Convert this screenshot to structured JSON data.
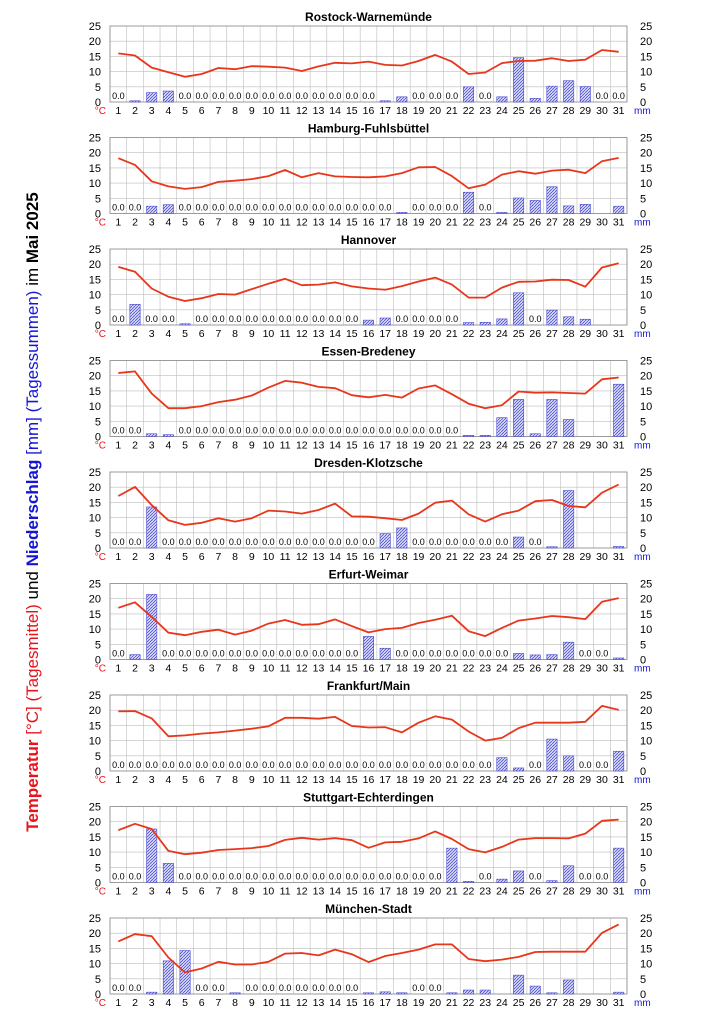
{
  "colors": {
    "temp": "#e8361b",
    "precip": "#4a4ad0",
    "precip_fill": "#c5c8f2",
    "grid": "#bdbdbd",
    "axis": "#000000",
    "unit_red": "#e8141b",
    "unit_blue": "#1515d6"
  },
  "y_title": {
    "temp_word": "Temperatur",
    "temp_unit": "[°C] (Tagesmittel)",
    "und": " und ",
    "precip_word": "Niederschlag",
    "precip_unit": "[mm] (Tagessummen)",
    "im": " im ",
    "month": "Mai 2025"
  },
  "chart_data": [
    {
      "type": "line+bar",
      "title": "Rostock-Warnemünde",
      "x": [
        1,
        2,
        3,
        4,
        5,
        6,
        7,
        8,
        9,
        10,
        11,
        12,
        13,
        14,
        15,
        16,
        17,
        18,
        19,
        20,
        21,
        22,
        23,
        24,
        25,
        26,
        27,
        28,
        29,
        30,
        31
      ],
      "ylim": [
        0,
        25
      ],
      "ylabel_left": "°C",
      "ylabel_right": "mm",
      "temperature": [
        16,
        15.3,
        11.3,
        9.8,
        8.3,
        9.2,
        11.2,
        10.8,
        11.8,
        11.6,
        11.3,
        10.2,
        11.7,
        12.9,
        12.7,
        13.3,
        12.2,
        12,
        13.5,
        15.5,
        13.3,
        9.2,
        9.7,
        12.8,
        13.5,
        13.6,
        14.4,
        13.5,
        13.9,
        17.1,
        16.5
      ],
      "precipitation": [
        0,
        0.3,
        3.1,
        3.6,
        0,
        0,
        0,
        0,
        0,
        0,
        0,
        0,
        0,
        0,
        0,
        0,
        0.1,
        1.7,
        0,
        0,
        0,
        5,
        0,
        1.7,
        14.6,
        1.2,
        5.2,
        7,
        5.1,
        0,
        0
      ],
      "zero_labels": [
        "0.0",
        "0.0",
        "0.0",
        "0.0",
        "0.0",
        "0.0",
        "0.0",
        "0.0",
        "0.0",
        "0.0",
        "0.0",
        "0.0",
        "0.0",
        "0.0",
        "0.0",
        "0.0",
        "0.0",
        "0.0",
        "0.0",
        "0.0"
      ]
    },
    {
      "type": "line+bar",
      "title": "Hamburg-Fuhlsbüttel",
      "x": [
        1,
        2,
        3,
        4,
        5,
        6,
        7,
        8,
        9,
        10,
        11,
        12,
        13,
        14,
        15,
        16,
        17,
        18,
        19,
        20,
        21,
        22,
        23,
        24,
        25,
        26,
        27,
        28,
        29,
        30,
        31
      ],
      "ylim": [
        0,
        25
      ],
      "ylabel_left": "°C",
      "ylabel_right": "mm",
      "temperature": [
        18.2,
        16,
        10.6,
        8.9,
        8.1,
        8.7,
        10.4,
        10.8,
        11.3,
        12.3,
        14.3,
        11.9,
        13.3,
        12.2,
        12,
        11.9,
        12.2,
        13.3,
        15.2,
        15.3,
        12.3,
        8.3,
        9.5,
        12.8,
        13.9,
        13.1,
        14.1,
        14.4,
        13.3,
        17.2,
        18.3
      ],
      "precipitation": [
        0,
        0,
        2.4,
        2.9,
        0,
        0,
        0,
        0,
        0,
        0,
        0,
        0,
        0,
        0,
        0,
        0,
        0,
        0.1,
        0,
        0,
        0,
        7,
        0,
        0.3,
        5.1,
        4.3,
        8.8,
        2.5,
        3,
        0,
        2.4
      ],
      "zero_labels": [
        "0.0",
        "0.0",
        "0.0",
        "0.0",
        "0.0",
        "0.0",
        "0.0",
        "0.0",
        "0.0",
        "0.0",
        "0.0",
        "0.0",
        "0.0",
        "0.0",
        "0.0",
        "0.0",
        "0.0",
        "0.0",
        "0.0"
      ]
    },
    {
      "type": "line+bar",
      "title": "Hannover",
      "x": [
        1,
        2,
        3,
        4,
        5,
        6,
        7,
        8,
        9,
        10,
        11,
        12,
        13,
        14,
        15,
        16,
        17,
        18,
        19,
        20,
        21,
        22,
        23,
        24,
        25,
        26,
        27,
        28,
        29,
        30,
        31
      ],
      "ylim": [
        0,
        25
      ],
      "ylabel_left": "°C",
      "ylabel_right": "mm",
      "temperature": [
        19.1,
        17.5,
        12,
        9.3,
        7.9,
        8.8,
        10.2,
        10,
        11.8,
        13.6,
        15.2,
        13.1,
        13.3,
        14,
        12.7,
        12,
        11.6,
        12.8,
        14.3,
        15.6,
        13.3,
        9,
        9,
        12.3,
        14.2,
        14.3,
        14.9,
        14.8,
        12.6,
        18.9,
        20.3
      ],
      "precipitation": [
        0,
        6.8,
        0,
        0,
        0.2,
        0,
        0,
        0,
        0,
        0,
        0,
        0,
        0,
        0,
        0,
        1.6,
        2.3,
        0,
        0,
        0,
        0,
        0.8,
        0.9,
        2,
        10.6,
        0,
        4.9,
        2.7,
        1.9,
        0,
        0
      ],
      "zero_labels": [
        "0.0",
        "0.0",
        "0.0",
        "0.0",
        "0.0",
        "0.0",
        "0.0",
        "0.0",
        "0.0",
        "0.0",
        "0.0",
        "0.0",
        "0.0",
        "0.0",
        "0.0",
        "0.0",
        "0.0",
        "0.0"
      ]
    },
    {
      "type": "line+bar",
      "title": "Essen-Bredeney",
      "x": [
        1,
        2,
        3,
        4,
        5,
        6,
        7,
        8,
        9,
        10,
        11,
        12,
        13,
        14,
        15,
        16,
        17,
        18,
        19,
        20,
        21,
        22,
        23,
        24,
        25,
        26,
        27,
        28,
        29,
        30,
        31
      ],
      "ylim": [
        0,
        25
      ],
      "ylabel_left": "°C",
      "ylabel_right": "mm",
      "temperature": [
        20.9,
        21.4,
        14.1,
        9.3,
        9.3,
        10,
        11.3,
        12.1,
        13.5,
        16.1,
        18.3,
        17.7,
        16.3,
        15.9,
        13.6,
        12.9,
        13.7,
        12.8,
        15.8,
        16.8,
        13.9,
        10.8,
        9.3,
        10.3,
        14.8,
        14.4,
        14.5,
        14.3,
        14.1,
        18.8,
        19.4
      ],
      "precipitation": [
        0,
        0,
        0.9,
        0.6,
        0,
        0,
        0,
        0,
        0,
        0,
        0,
        0,
        0,
        0,
        0,
        0,
        0,
        0,
        0,
        0,
        0,
        0.2,
        0.3,
        6.2,
        12.2,
        0.9,
        12.2,
        5.6,
        0,
        0,
        17.2
      ],
      "zero_labels": [
        "0.0",
        "0.0",
        "0.0",
        "0.0",
        "0.0",
        "0.0",
        "0.0",
        "0.0",
        "0.0",
        "0.0",
        "0.0",
        "0.0",
        "0.0",
        "0.0",
        "0.0",
        "0.0",
        "0.0",
        "0.0",
        "0.0"
      ]
    },
    {
      "type": "line+bar",
      "title": "Dresden-Klotzsche",
      "x": [
        1,
        2,
        3,
        4,
        5,
        6,
        7,
        8,
        9,
        10,
        11,
        12,
        13,
        14,
        15,
        16,
        17,
        18,
        19,
        20,
        21,
        22,
        23,
        24,
        25,
        26,
        27,
        28,
        29,
        30,
        31
      ],
      "ylim": [
        0,
        25
      ],
      "ylabel_left": "°C",
      "ylabel_right": "mm",
      "temperature": [
        17.1,
        20.1,
        14.1,
        9.1,
        7.6,
        8.3,
        9.8,
        8.7,
        9.8,
        12.3,
        12,
        11.3,
        12.5,
        14.6,
        10.4,
        10.3,
        9.8,
        9.2,
        11.3,
        14.9,
        15.6,
        11.1,
        8.7,
        11.1,
        12.3,
        15.4,
        15.8,
        13.8,
        13.4,
        18.2,
        20.9
      ],
      "precipitation": [
        0,
        0,
        13.5,
        0,
        0,
        0,
        0,
        0,
        0,
        0,
        0,
        0,
        0,
        0,
        0,
        0,
        4.7,
        6.6,
        0,
        0,
        0,
        0,
        0,
        0,
        3.6,
        0,
        0.4,
        18.9,
        0,
        0,
        0.5
      ],
      "zero_labels": [
        "0.0",
        "0.0",
        "0.0",
        "0.0",
        "0.0",
        "0.0",
        "0.0",
        "0.0",
        "0.0",
        "0.0",
        "0.0",
        "0.0",
        "0.0",
        "0.0",
        "0.0",
        "0.0",
        "0.0",
        "0.0",
        "0.0",
        "0.0",
        "0.0",
        "0.0"
      ]
    },
    {
      "type": "line+bar",
      "title": "Erfurt-Weimar",
      "x": [
        1,
        2,
        3,
        4,
        5,
        6,
        7,
        8,
        9,
        10,
        11,
        12,
        13,
        14,
        15,
        16,
        17,
        18,
        19,
        20,
        21,
        22,
        23,
        24,
        25,
        26,
        27,
        28,
        29,
        30,
        31
      ],
      "ylim": [
        0,
        25
      ],
      "ylabel_left": "°C",
      "ylabel_right": "mm",
      "temperature": [
        17,
        18.8,
        14,
        8.8,
        8,
        9.1,
        9.8,
        8.2,
        9.5,
        11.8,
        13,
        11.4,
        11.6,
        13.2,
        11,
        8.9,
        10,
        10.4,
        12,
        13.1,
        14.4,
        9.3,
        7.7,
        10.4,
        12.8,
        13.5,
        14.3,
        13.9,
        13.3,
        19,
        20.2
      ],
      "precipitation": [
        0,
        1.6,
        21.4,
        0,
        0,
        0,
        0,
        0,
        0,
        0,
        0,
        0,
        0,
        0,
        0,
        7.6,
        3.7,
        0,
        0,
        0,
        0,
        0,
        0,
        0,
        2,
        1.5,
        1.6,
        5.7,
        0,
        0,
        0.5
      ],
      "zero_labels": [
        "0.0",
        "0.0",
        "0.0",
        "0.0",
        "0.0",
        "0.0",
        "0.0",
        "0.0",
        "0.0",
        "0.0",
        "0.0",
        "0.0",
        "0.0",
        "0.0",
        "0.0",
        "0.0",
        "0.0",
        "0.0",
        "0.0",
        "0.0",
        "0.0",
        "0.0"
      ]
    },
    {
      "type": "line+bar",
      "title": "Frankfurt/Main",
      "x": [
        1,
        2,
        3,
        4,
        5,
        6,
        7,
        8,
        9,
        10,
        11,
        12,
        13,
        14,
        15,
        16,
        17,
        18,
        19,
        20,
        21,
        22,
        23,
        24,
        25,
        26,
        27,
        28,
        29,
        30,
        31
      ],
      "ylim": [
        0,
        25
      ],
      "ylabel_left": "°C",
      "ylabel_right": "mm",
      "temperature": [
        19.6,
        19.7,
        17.3,
        11.4,
        11.7,
        12.3,
        12.7,
        13.3,
        13.9,
        14.7,
        17.5,
        17.5,
        17.2,
        17.8,
        14.8,
        14.3,
        14.4,
        12.7,
        15.9,
        18,
        16.9,
        13,
        10,
        10.9,
        14.1,
        15.9,
        15.9,
        15.9,
        16.2,
        21.4,
        20.1
      ],
      "precipitation": [
        0,
        0,
        0,
        0,
        0,
        0,
        0,
        0,
        0,
        0,
        0,
        0,
        0,
        0,
        0,
        0,
        0,
        0,
        0,
        0,
        0,
        0,
        0,
        4.4,
        1,
        0,
        10.5,
        5,
        0,
        0,
        6.5
      ],
      "zero_labels": [
        "0.0",
        "0.0",
        "0.0",
        "0.0",
        "0.0",
        "0.0",
        "0.0",
        "0.0",
        "0.0",
        "0.0",
        "0.0",
        "0.0",
        "0.0",
        "0.0",
        "0.0",
        "0.0",
        "0.0",
        "0.0",
        "0.0",
        "0.0",
        "0.0",
        "0.0",
        "0.0",
        "0.0",
        "0.0",
        "0.0"
      ]
    },
    {
      "type": "line+bar",
      "title": "Stuttgart-Echterdingen",
      "x": [
        1,
        2,
        3,
        4,
        5,
        6,
        7,
        8,
        9,
        10,
        11,
        12,
        13,
        14,
        15,
        16,
        17,
        18,
        19,
        20,
        21,
        22,
        23,
        24,
        25,
        26,
        27,
        28,
        29,
        30,
        31
      ],
      "ylim": [
        0,
        25
      ],
      "ylabel_left": "°C",
      "ylabel_right": "mm",
      "temperature": [
        17.2,
        19.3,
        17.6,
        10.4,
        9.3,
        9.8,
        10.7,
        11,
        11.3,
        12,
        14,
        14.7,
        14.1,
        14.6,
        13.9,
        11.4,
        13.2,
        13.4,
        14.5,
        16.8,
        14.3,
        11,
        9.9,
        11.7,
        14.1,
        14.6,
        14.6,
        14.5,
        16.1,
        20.3,
        20.7
      ],
      "precipitation": [
        0,
        0,
        17.6,
        6.3,
        0,
        0,
        0,
        0,
        0,
        0,
        0,
        0,
        0,
        0,
        0,
        0,
        0,
        0,
        0,
        0,
        11.3,
        0.3,
        0,
        1.1,
        3.8,
        0,
        0.6,
        5.5,
        0,
        0,
        11.3
      ],
      "zero_labels": [
        "0.0",
        "0.0",
        "0.0",
        "0.0",
        "0.0",
        "0.0",
        "0.0",
        "0.0",
        "0.0",
        "0.0",
        "0.0",
        "0.0",
        "0.0",
        "0.0",
        "0.0",
        "0.0",
        "0.0",
        "0.0",
        "0.0",
        "0.0",
        "0.0",
        "0.0",
        "0.0"
      ]
    },
    {
      "type": "line+bar",
      "title": "München-Stadt",
      "x": [
        1,
        2,
        3,
        4,
        5,
        6,
        7,
        8,
        9,
        10,
        11,
        12,
        13,
        14,
        15,
        16,
        17,
        18,
        19,
        20,
        21,
        22,
        23,
        24,
        25,
        26,
        27,
        28,
        29,
        30,
        31
      ],
      "ylim": [
        0,
        25
      ],
      "ylabel_left": "°C",
      "ylabel_right": "mm",
      "temperature": [
        17.3,
        19.7,
        19,
        12,
        7.1,
        8.4,
        10.6,
        9.7,
        9.7,
        10.6,
        13.3,
        13.5,
        12.7,
        14.6,
        13.1,
        10.5,
        12.5,
        13.5,
        14.6,
        16.3,
        16.3,
        11.5,
        10.8,
        11.3,
        12.2,
        13.8,
        13.9,
        13.9,
        13.9,
        20.1,
        22.9
      ],
      "precipitation": [
        0,
        0,
        0.6,
        10.9,
        14.3,
        0,
        0,
        0.1,
        0,
        0,
        0,
        0,
        0,
        0,
        0,
        0.3,
        0.7,
        0.4,
        0,
        0,
        0.3,
        1.3,
        1.3,
        0,
        6.2,
        2.6,
        0.3,
        4.6,
        0,
        0,
        0.6
      ],
      "zero_labels": [
        "0.0",
        "0.0",
        "0.0",
        "0.0",
        "0.0",
        "0.0",
        "0.0",
        "0.0",
        "0.0",
        "0.0",
        "0.0",
        "0.0",
        "0.0"
      ]
    }
  ]
}
